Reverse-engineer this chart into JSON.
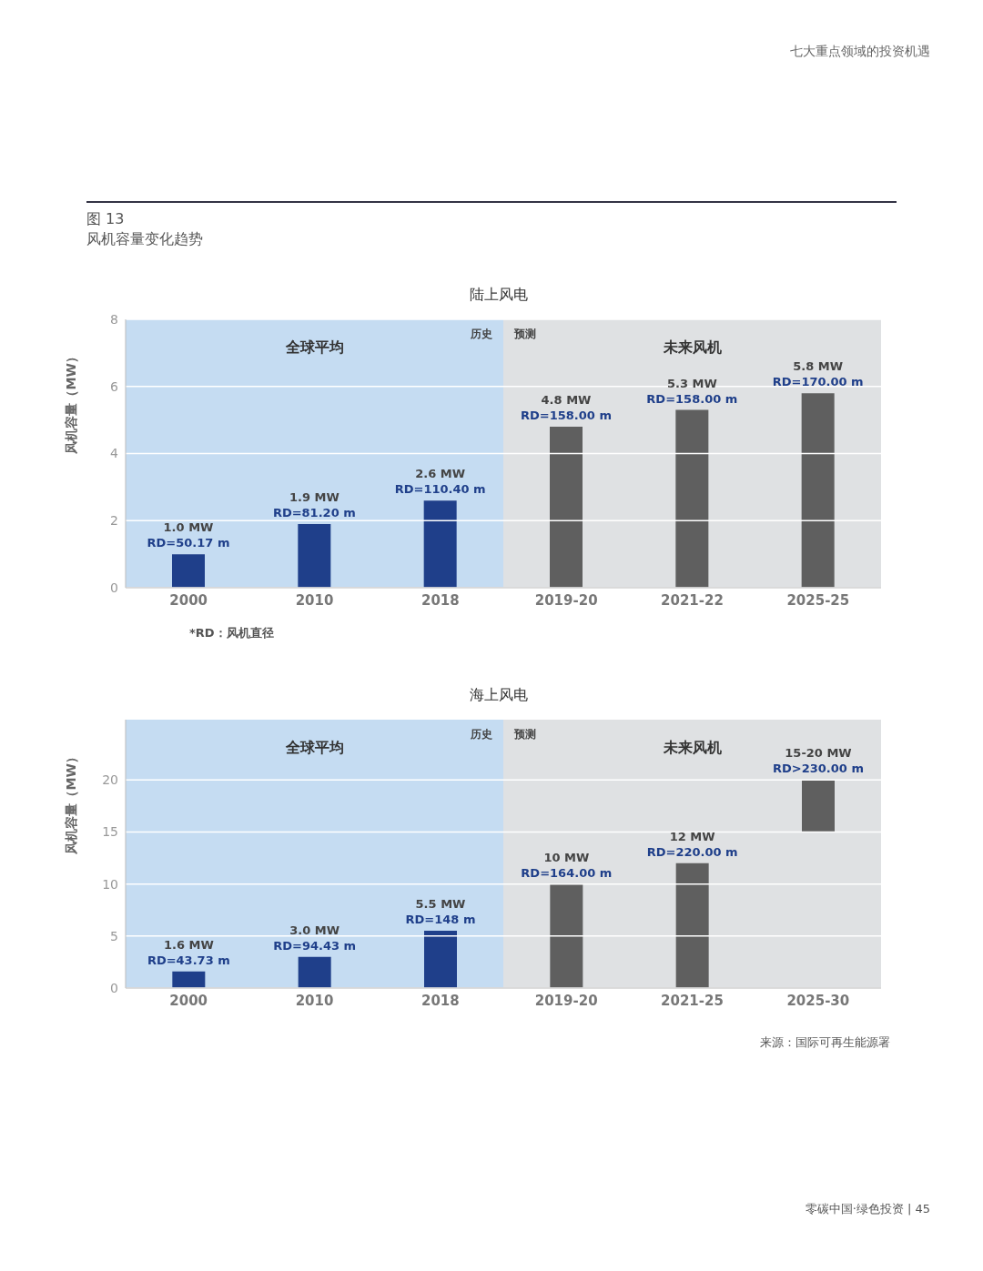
{
  "chart_data": [
    {
      "type": "bar",
      "title": "陆上风电",
      "ylabel": "风机容量（MW）",
      "categories": [
        "2000",
        "2010",
        "2018",
        "2019-20",
        "2021-22",
        "2025-25"
      ],
      "values": [
        1.0,
        1.9,
        2.6,
        4.8,
        5.3,
        5.8
      ],
      "colors": [
        "#1f3f8a",
        "#1f3f8a",
        "#1f3f8a",
        "#5f5f5f",
        "#5f5f5f",
        "#5f5f5f"
      ],
      "value_labels": [
        "1.0 MW\nRD=50.17 m",
        "1.9 MW\nRD=81.20 m",
        "2.6 MW\nRD=110.40 m",
        "4.8 MW\nRD=158.00 m",
        "5.3 MW\nRD=158.00 m",
        "5.8 MW\nRD=170.00 m"
      ],
      "ylim": [
        0,
        8
      ],
      "yticks": [
        0,
        2,
        4,
        6,
        8
      ],
      "grid": "y",
      "bands": [
        {
          "axis": "x",
          "from": "2000",
          "to": "2018",
          "label": "历史",
          "color": "#c5dcf2"
        },
        {
          "axis": "x",
          "from": "2019-20",
          "to": "2025-25",
          "label": "预测",
          "color": "#dfe1e3"
        }
      ],
      "annotations": [
        "全球平均",
        "未来风机",
        "*RD：风机直径",
        "七大重点领域的投资机遇",
        "图 13",
        "风机容量变化趋势"
      ]
    },
    {
      "type": "bar",
      "title": "海上风电",
      "ylabel": "风机容量（MW）",
      "categories": [
        "2000",
        "2010",
        "2018",
        "2019-20",
        "2021-25",
        "2025-30"
      ],
      "values": [
        1.6,
        3.0,
        5.5,
        10,
        12,
        5
      ],
      "base": [
        0,
        0,
        0,
        0,
        0,
        15
      ],
      "colors": [
        "#1f3f8a",
        "#1f3f8a",
        "#1f3f8a",
        "#5f5f5f",
        "#5f5f5f",
        "#5f5f5f"
      ],
      "value_labels": [
        "1.6 MW\nRD=43.73 m",
        "3.0 MW\nRD=94.43 m",
        "5.5 MW\nRD=148 m",
        "10 MW\nRD=164.00 m",
        "12 MW\nRD=220.00 m",
        "15-20 MW\nRD>230.00 m"
      ],
      "ylim": [
        0,
        25.8
      ],
      "yticks": [
        0,
        5,
        10,
        15,
        20
      ],
      "grid": "y",
      "bands": [
        {
          "axis": "x",
          "from": "2000",
          "to": "2018",
          "label": "历史",
          "color": "#c5dcf2"
        },
        {
          "axis": "x",
          "from": "2019-20",
          "to": "2025-30",
          "label": "预测",
          "color": "#dfe1e3"
        }
      ],
      "annotations": [
        "全球平均",
        "未来风机",
        "来源：国际可再生能源署",
        "零碳中国·绿色投资 | 45"
      ]
    }
  ]
}
